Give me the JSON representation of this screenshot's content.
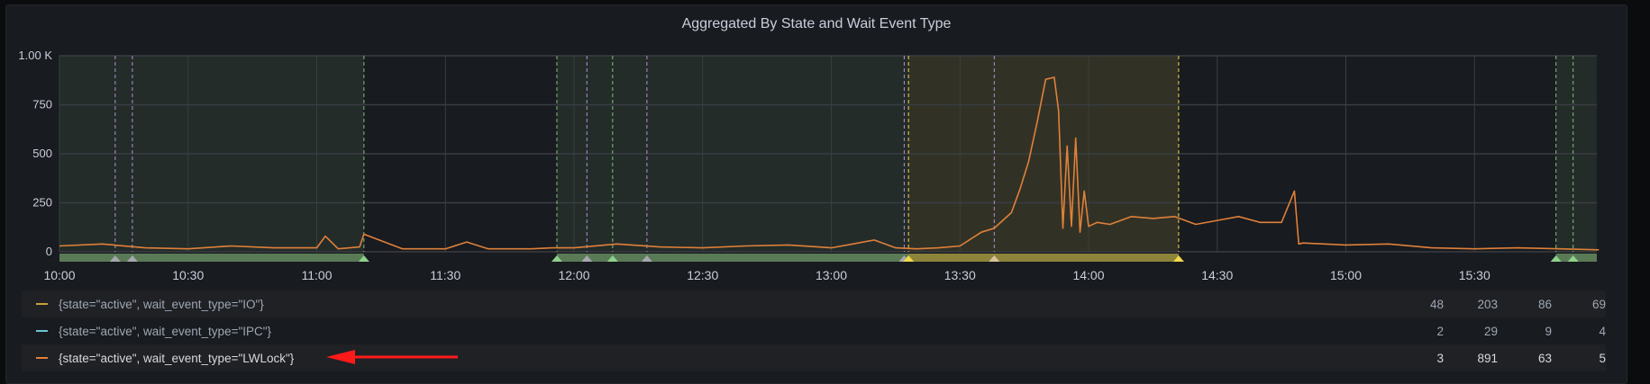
{
  "panel": {
    "title": "Aggregated By State and Wait Event Type"
  },
  "colors": {
    "series_io": "#c8a13a",
    "series_ipc": "#6ec3d6",
    "series_lwlock": "#e0803a",
    "region_green": "#5a7a56",
    "region_yellow": "#8c843a",
    "annotation_purple": "#b58fd6",
    "annotation_green": "#7ec27a",
    "annotation_yellow": "#f2d94a",
    "arrow": "#ff1a1a"
  },
  "chart_data": {
    "type": "line",
    "title": "Aggregated By State and Wait Event Type",
    "xlabel": "",
    "ylabel": "",
    "ylim": [
      0,
      1000
    ],
    "yticks": [
      "0",
      "250",
      "500",
      "750",
      "1.00 K"
    ],
    "xticks": [
      "10:00",
      "10:30",
      "11:00",
      "11:30",
      "12:00",
      "12:30",
      "13:00",
      "13:30",
      "14:00",
      "14:30",
      "15:00",
      "15:30"
    ],
    "grid": true,
    "legend_position": "bottom",
    "x_range": [
      "10:00",
      "15:59"
    ],
    "series": [
      {
        "name": "{state=\"active\", wait_event_type=\"LWLock\"}",
        "color": "#e0803a",
        "x": [
          "10:00",
          "10:10",
          "10:20",
          "10:30",
          "10:40",
          "10:50",
          "11:00",
          "11:02",
          "11:05",
          "11:10",
          "11:11",
          "11:20",
          "11:30",
          "11:35",
          "11:40",
          "11:50",
          "11:55",
          "12:00",
          "12:10",
          "12:20",
          "12:30",
          "12:40",
          "12:50",
          "13:00",
          "13:05",
          "13:10",
          "13:15",
          "13:20",
          "13:25",
          "13:30",
          "13:35",
          "13:38",
          "13:40",
          "13:42",
          "13:44",
          "13:46",
          "13:48",
          "13:50",
          "13:52",
          "13:53",
          "13:54",
          "13:55",
          "13:56",
          "13:57",
          "13:58",
          "13:59",
          "14:00",
          "14:02",
          "14:05",
          "14:10",
          "14:15",
          "14:20",
          "14:25",
          "14:30",
          "14:35",
          "14:40",
          "14:45",
          "14:48",
          "14:49",
          "14:50",
          "14:55",
          "15:00",
          "15:10",
          "15:20",
          "15:30",
          "15:40",
          "15:50",
          "15:59"
        ],
        "values": [
          30,
          40,
          20,
          15,
          30,
          20,
          20,
          80,
          15,
          25,
          90,
          15,
          15,
          50,
          15,
          15,
          20,
          20,
          40,
          25,
          20,
          30,
          35,
          20,
          40,
          60,
          20,
          15,
          20,
          30,
          100,
          120,
          160,
          200,
          320,
          460,
          660,
          880,
          890,
          720,
          120,
          540,
          130,
          580,
          100,
          310,
          130,
          150,
          140,
          180,
          170,
          180,
          140,
          160,
          180,
          150,
          150,
          310,
          40,
          45,
          40,
          35,
          40,
          20,
          15,
          20,
          15,
          10
        ]
      }
    ],
    "legend": [
      {
        "label": "{state=\"active\", wait_event_type=\"IO\"}",
        "color": "#c8a13a",
        "values": [
          "48",
          "203",
          "86",
          "69"
        ]
      },
      {
        "label": "{state=\"active\", wait_event_type=\"IPC\"}",
        "color": "#6ec3d6",
        "values": [
          "2",
          "29",
          "9",
          "4"
        ]
      },
      {
        "label": "{state=\"active\", wait_event_type=\"LWLock\"}",
        "color": "#e0803a",
        "values": [
          "3",
          "891",
          "63",
          "5"
        ]
      }
    ],
    "annotation_regions": [
      {
        "start": "10:00",
        "end": "11:11",
        "color": "green"
      },
      {
        "start": "11:56",
        "end": "13:18",
        "color": "green"
      },
      {
        "start": "13:18",
        "end": "14:21",
        "color": "yellow"
      },
      {
        "start": "15:49",
        "end": "15:59",
        "color": "green"
      }
    ],
    "annotation_markers": [
      {
        "time": "10:13",
        "color": "purple"
      },
      {
        "time": "10:17",
        "color": "purple"
      },
      {
        "time": "11:11",
        "color": "green"
      },
      {
        "time": "11:56",
        "color": "green"
      },
      {
        "time": "12:03",
        "color": "purple"
      },
      {
        "time": "12:09",
        "color": "green"
      },
      {
        "time": "12:17",
        "color": "purple"
      },
      {
        "time": "13:17",
        "color": "purple"
      },
      {
        "time": "13:18",
        "color": "yellow"
      },
      {
        "time": "13:38",
        "color": "purple"
      },
      {
        "time": "14:21",
        "color": "yellow"
      },
      {
        "time": "15:49",
        "color": "green"
      },
      {
        "time": "15:53",
        "color": "green"
      }
    ]
  }
}
